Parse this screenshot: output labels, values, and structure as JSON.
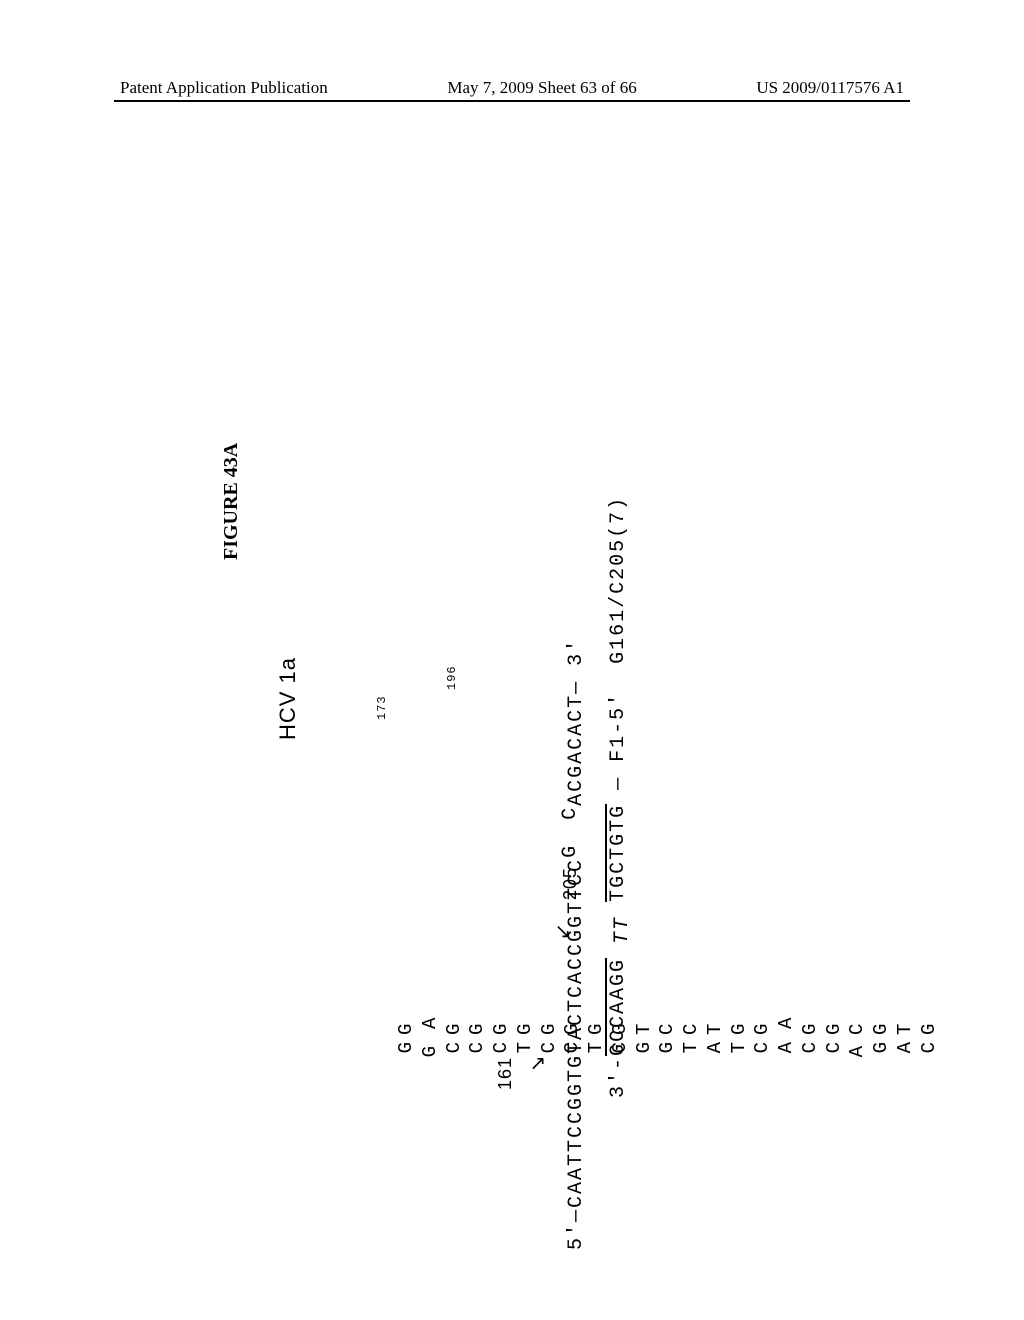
{
  "header": {
    "left": "Patent Application Publication",
    "center": "May 7, 2009  Sheet 63 of 66",
    "right": "US 2009/0117576 A1"
  },
  "figure": {
    "title": "FIGURE 43A",
    "hcv_label": "HCV 1a",
    "hairpin_pairs": [
      [
        "G",
        "G"
      ],
      [
        "G",
        "A"
      ],
      [
        "C",
        "G"
      ],
      [
        "C",
        "G"
      ],
      [
        "C",
        "G"
      ],
      [
        "T",
        "G"
      ],
      [
        "C",
        "G"
      ],
      [
        "C",
        "G"
      ],
      [
        "T",
        "G"
      ],
      [
        "C",
        "G"
      ],
      [
        "G",
        "T"
      ],
      [
        "G",
        "C"
      ],
      [
        "T",
        "C"
      ],
      [
        "A",
        "T"
      ],
      [
        "T",
        "G"
      ],
      [
        "C",
        "G"
      ],
      [
        "A",
        "A"
      ],
      [
        "C",
        "G"
      ],
      [
        "C",
        "G"
      ],
      [
        "A",
        "C"
      ],
      [
        "G",
        "G"
      ],
      [
        "A",
        "T"
      ],
      [
        "C",
        "G"
      ]
    ],
    "pos_173_label": "173",
    "pos_196_label": "196",
    "callout_161": "161",
    "callout_205": "205",
    "target_seq": {
      "five_prime": "5'—",
      "left": "CAATTCCGGTGTACTCACCGGTTCC",
      "g_spacer": "G",
      "c_spacer": "C",
      "right": "ACGACACT",
      "three_prime": "— 3'"
    },
    "probe": {
      "three_prime": "3'-",
      "arm_left": "GCCAAGG",
      "linker": "TT",
      "arm_right": "TGCTGTG",
      "dash": " —",
      "fluor": "F1-5'",
      "suffix": "  G161/C205(7)"
    }
  },
  "style": {
    "text_color": "#000000",
    "background": "#ffffff",
    "mono_font": "Courier New",
    "sans_font": "Arial",
    "serif_font": "Times New Roman"
  }
}
